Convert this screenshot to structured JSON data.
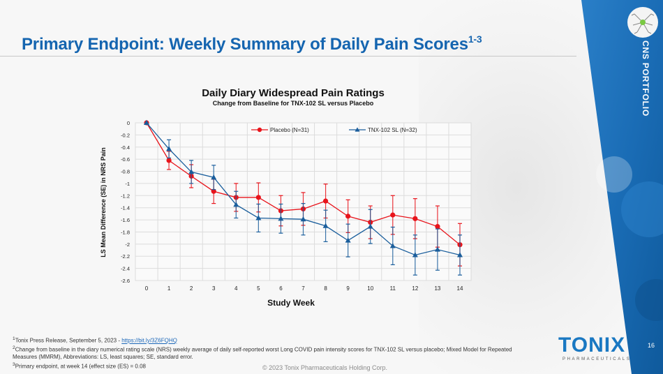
{
  "slide": {
    "title": "Primary Endpoint: Weekly Summary of Daily Pain Scores",
    "title_superscript": "1-3",
    "side_label": "CNS PORTFOLIO",
    "page_number": "16",
    "copyright": "© 2023 Tonix Pharmaceuticals Holding Corp.",
    "logo": {
      "name": "TONIX",
      "tagline": "PHARMACEUTICALS"
    },
    "colors": {
      "brand_blue": "#1565b0",
      "panel_blue": "#1d73bf",
      "placebo_red": "#e8141b",
      "tnx_blue": "#1a5e9c"
    }
  },
  "footnotes": {
    "fn1_mark": "1",
    "fn1_text": "Tonix Press Release, September 5, 2023 - ",
    "fn1_link": "https://bit.ly/3Z6FQHQ",
    "fn2_mark": "2",
    "fn2_text": "Change from baseline in the diary numerical rating scale (NRS) weekly average of daily self-reported worst Long COVID pain intensity scores for TNX-102 SL versus placebo; Mixed Model for Repeated Measures (MMRM), Abbreviations: LS, least squares; SE, standard error.",
    "fn3_mark": "3",
    "fn3_text": "Primary endpoint, at week 14 (effect size (ES) = 0.08"
  },
  "chart_data": {
    "type": "line",
    "title": "Daily Diary Widespread Pain Ratings",
    "subtitle": "Change from Baseline for TNX-102 SL versus Placebo",
    "xlabel": "Study Week",
    "ylabel": "LS Mean Difference (SE) in NRS Pain",
    "x": [
      0,
      1,
      2,
      3,
      4,
      5,
      6,
      7,
      8,
      9,
      10,
      11,
      12,
      13,
      14
    ],
    "xlim": [
      0,
      14
    ],
    "ylim": [
      -2.6,
      0
    ],
    "yticks": [
      0,
      -0.2,
      -0.4,
      -0.6,
      -0.8,
      -1,
      -1.2,
      -1.4,
      -1.6,
      -1.8,
      -2,
      -2.2,
      -2.4,
      -2.6
    ],
    "ytick_labels": [
      "0",
      "-0.2",
      "-0.4",
      "-0.6",
      "-0.8",
      "-1",
      "-1.2",
      "-1.4",
      "-1.6",
      "-1.8",
      "-2",
      "-2.2",
      "-2.4",
      "-2.6"
    ],
    "xtick_labels": [
      "0",
      "1",
      "2",
      "3",
      "4",
      "5",
      "6",
      "7",
      "8",
      "9",
      "10",
      "11",
      "12",
      "13",
      "14"
    ],
    "grid": true,
    "legend_position": "top-center",
    "series": [
      {
        "name": "Placebo (N=31)",
        "color": "#e8141b",
        "marker": "circle",
        "values": [
          0,
          -0.62,
          -0.88,
          -1.13,
          -1.23,
          -1.23,
          -1.45,
          -1.42,
          -1.29,
          -1.54,
          -1.64,
          -1.52,
          -1.58,
          -1.71,
          -2.01
        ],
        "se": [
          0,
          0.15,
          0.19,
          0.2,
          0.23,
          0.24,
          0.25,
          0.27,
          0.28,
          0.27,
          0.27,
          0.32,
          0.33,
          0.34,
          0.35
        ]
      },
      {
        "name": "TNX-102 SL (N=32)",
        "color": "#1a5e9c",
        "marker": "triangle",
        "values": [
          0,
          -0.43,
          -0.81,
          -0.9,
          -1.35,
          -1.57,
          -1.58,
          -1.59,
          -1.7,
          -1.94,
          -1.71,
          -2.03,
          -2.18,
          -2.09,
          -2.18
        ],
        "se": [
          0,
          0.15,
          0.19,
          0.2,
          0.22,
          0.23,
          0.24,
          0.26,
          0.26,
          0.27,
          0.28,
          0.31,
          0.33,
          0.34,
          0.33
        ]
      }
    ]
  }
}
